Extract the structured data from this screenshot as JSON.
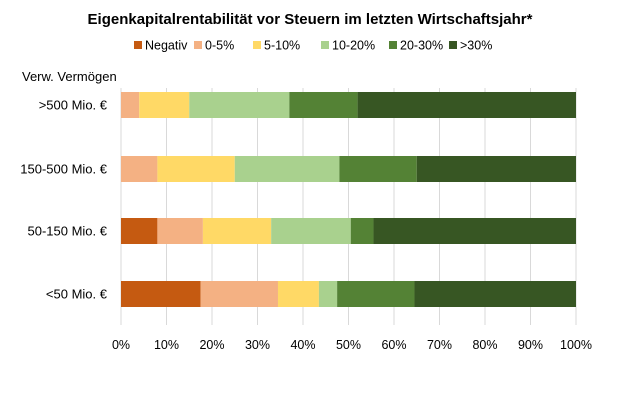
{
  "chart_data": {
    "type": "bar",
    "orientation": "horizontal",
    "stacked": true,
    "percent_stacked": true,
    "title": "Eigenkapitalrentabilität vor Steuern im letzten Wirtschaftsjahr*",
    "ylabel": "Verw. Vermögen",
    "xlabel": "",
    "categories": [
      ">500 Mio. €",
      "150-500 Mio. €",
      "50-150 Mio. €",
      "<50 Mio. €"
    ],
    "xlim": [
      0,
      100
    ],
    "xticks": [
      0,
      10,
      20,
      30,
      40,
      50,
      60,
      70,
      80,
      90,
      100
    ],
    "tick_suffix": "%",
    "grid": true,
    "legend_position": "top",
    "series": [
      {
        "name": "Negativ",
        "color": "#c55a11",
        "values": [
          0,
          0,
          8,
          17.5
        ]
      },
      {
        "name": "0-5%",
        "color": "#f4b183",
        "values": [
          4,
          8,
          10,
          17
        ]
      },
      {
        "name": "5-10%",
        "color": "#ffd966",
        "values": [
          11,
          17,
          15,
          9
        ]
      },
      {
        "name": "10-20%",
        "color": "#a9d18e",
        "values": [
          22,
          23,
          17.5,
          4
        ]
      },
      {
        "name": "20-30%",
        "color": "#548235",
        "values": [
          15,
          17,
          5,
          17
        ]
      },
      {
        "name": ">30%",
        "color": "#375623",
        "values": [
          48,
          35,
          44.5,
          35.5
        ]
      }
    ]
  }
}
